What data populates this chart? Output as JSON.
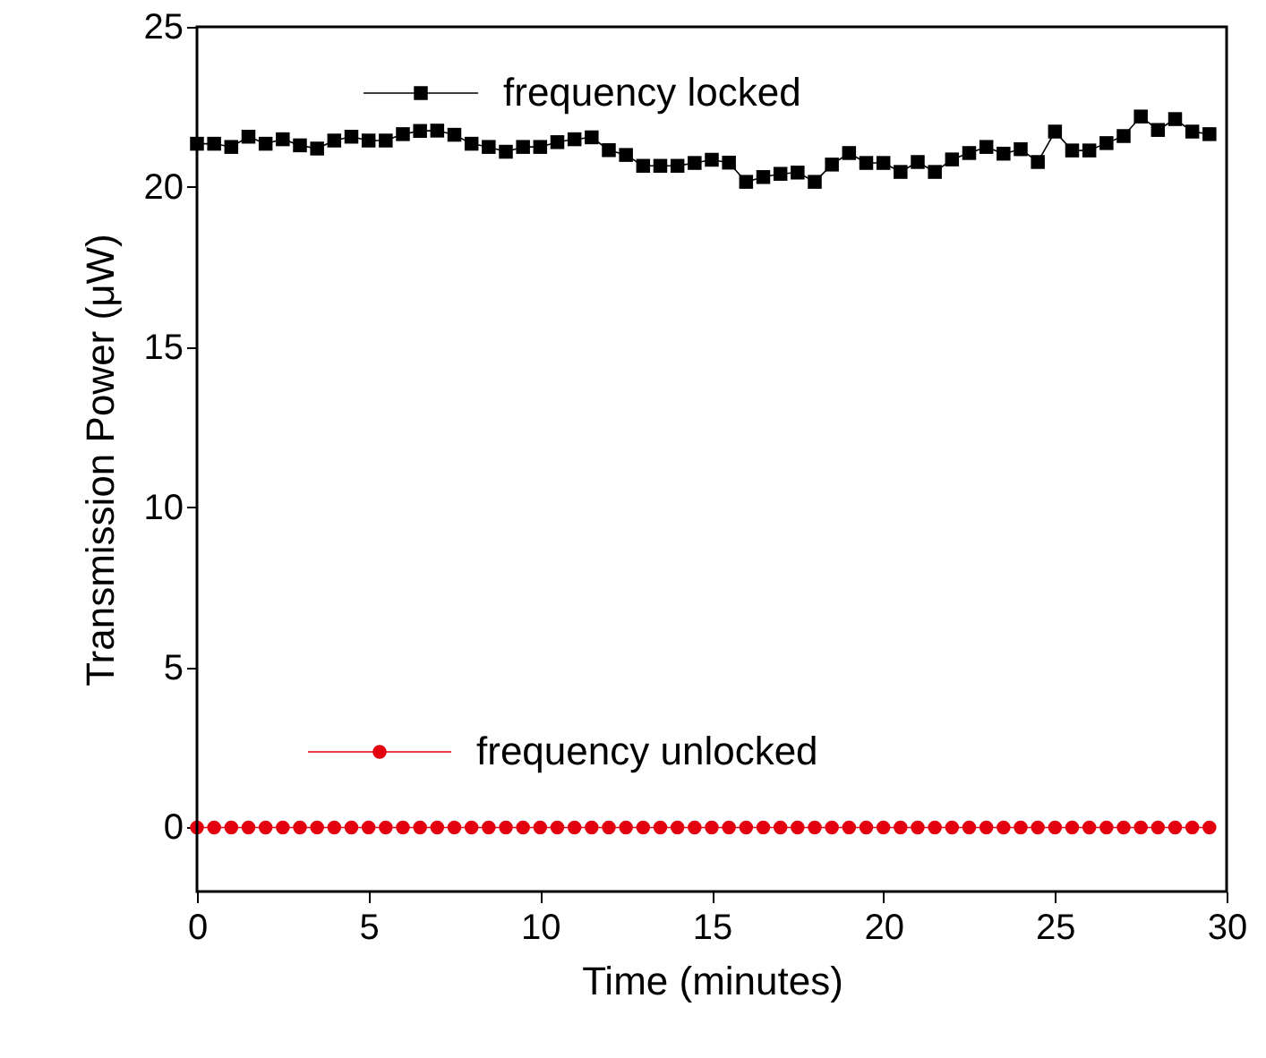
{
  "chart_data": {
    "type": "line",
    "xlabel": "Time (minutes)",
    "ylabel": "Transmission Power (μW)",
    "xlim": [
      0,
      30
    ],
    "xticks": [
      0,
      5,
      10,
      15,
      20,
      25,
      30
    ],
    "ylim": [
      -2,
      25
    ],
    "yticks": [
      0,
      5,
      10,
      15,
      20,
      25
    ],
    "grid": false,
    "legend": "top left",
    "x": [
      0,
      0.5,
      1,
      1.5,
      2,
      2.5,
      3,
      3.5,
      4,
      4.5,
      5,
      5.5,
      6,
      6.5,
      7,
      7.5,
      8,
      8.5,
      9,
      9.5,
      10,
      10.5,
      11,
      11.5,
      12,
      12.5,
      13,
      13.5,
      14,
      14.5,
      15,
      15.5,
      16,
      16.5,
      17,
      17.5,
      18,
      18.5,
      19,
      19.5,
      20,
      20.5,
      21,
      21.5,
      22,
      22.5,
      23,
      23.5,
      24,
      24.5,
      25,
      25.5,
      26,
      26.5,
      27,
      27.5,
      28,
      28.5,
      29,
      29.5
    ],
    "series": [
      {
        "name": "frequency locked",
        "color": "#000000",
        "marker": "square",
        "values": [
          21.35,
          21.35,
          21.25,
          21.57,
          21.35,
          21.49,
          21.3,
          21.2,
          21.45,
          21.57,
          21.45,
          21.45,
          21.65,
          21.75,
          21.76,
          21.63,
          21.35,
          21.25,
          21.1,
          21.25,
          21.25,
          21.4,
          21.49,
          21.55,
          21.15,
          21.0,
          20.66,
          20.66,
          20.66,
          20.75,
          20.85,
          20.76,
          20.16,
          20.31,
          20.41,
          20.45,
          20.16,
          20.7,
          21.06,
          20.75,
          20.75,
          20.47,
          20.78,
          20.47,
          20.86,
          21.06,
          21.25,
          21.04,
          21.18,
          20.78,
          21.73,
          21.14,
          21.14,
          21.37,
          21.59,
          22.2,
          21.78,
          22.12,
          21.73,
          21.65
        ]
      },
      {
        "name": "frequency unlocked",
        "color": "#e3000f",
        "marker": "circle",
        "values": [
          0,
          0,
          0,
          0,
          0,
          0,
          0,
          0,
          0,
          0,
          0,
          0,
          0,
          0,
          0,
          0,
          0,
          0,
          0,
          0,
          0,
          0,
          0,
          0,
          0,
          0,
          0,
          0,
          0,
          0,
          0,
          0,
          0,
          0,
          0,
          0,
          0,
          0,
          0,
          0,
          0,
          0,
          0,
          0,
          0,
          0,
          0,
          0,
          0,
          0,
          0,
          0,
          0,
          0,
          0,
          0,
          0,
          0,
          0,
          0
        ]
      }
    ]
  }
}
